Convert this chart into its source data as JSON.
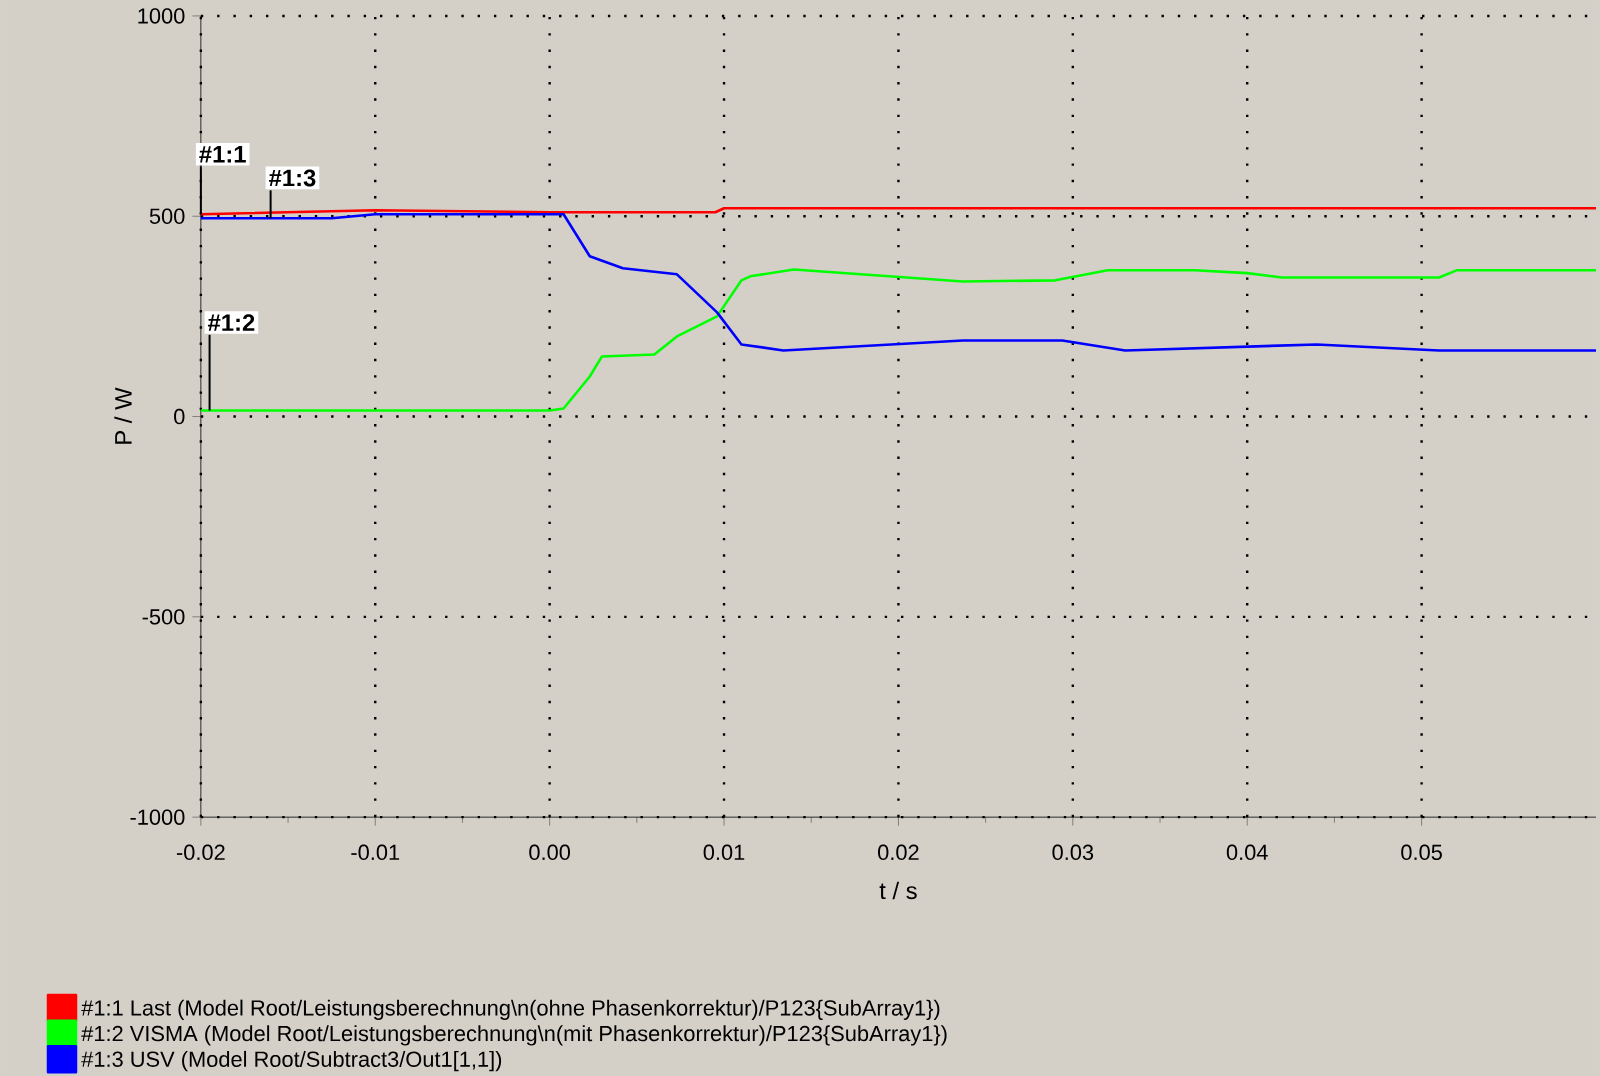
{
  "chart_data": {
    "type": "line",
    "xlabel": "t / s",
    "ylabel": "P / W",
    "xlim": [
      -0.02,
      0.06
    ],
    "ylim": [
      -1000,
      1000
    ],
    "xticks": [
      -0.02,
      -0.01,
      {
        "value": 0,
        "label": "0.00"
      },
      0.01,
      0.02,
      0.03,
      0.04,
      0.05
    ],
    "yticks": [
      -1000,
      -500,
      0,
      500,
      1000
    ],
    "grid": true,
    "legend": "bottom",
    "marker": "none",
    "line_style": "solid",
    "series": [
      {
        "name": "#1:1 Last (Model Root/Leistungsberechnung\\n(ohne Phasenkorrektur)/P123{SubArray1})",
        "color": "#ff0000",
        "x": [
          -0.02,
          -0.01,
          0.0,
          0.0095,
          0.01,
          0.06
        ],
        "values": [
          505,
          515,
          510,
          510,
          520,
          520
        ]
      },
      {
        "name": "#1:2 VISMA (Model Root/Leistungsberechnung\\n(mit Phasenkorrektur)/P123{SubArray1})",
        "color": "#00ff00",
        "x": [
          -0.02,
          -0.01,
          0.0,
          0.0008,
          0.0023,
          0.003,
          0.006,
          0.0073,
          0.0096,
          0.011,
          0.0115,
          0.014,
          0.0237,
          0.029,
          0.032,
          0.037,
          0.04,
          0.042,
          0.051,
          0.052,
          0.06
        ],
        "values": [
          15,
          15,
          15,
          20,
          100,
          150,
          155,
          200,
          250,
          340,
          350,
          367,
          337,
          340,
          365,
          365,
          358,
          347,
          347,
          365,
          365
        ]
      },
      {
        "name": "#1:3 USV (Model Root/Subtract3/Out1[1,1])",
        "color": "#0000ff",
        "x": [
          -0.02,
          -0.0125,
          -0.01,
          0.0,
          0.0008,
          0.0023,
          0.0042,
          0.0073,
          0.0096,
          0.011,
          0.0134,
          0.0237,
          0.0294,
          0.033,
          0.044,
          0.051,
          0.06
        ],
        "values": [
          495,
          495,
          505,
          505,
          505,
          400,
          370,
          355,
          260,
          180,
          165,
          190,
          190,
          165,
          180,
          165,
          165
        ]
      }
    ],
    "annotations": [
      {
        "text": "#1:1",
        "x": -0.02,
        "y": 505
      },
      {
        "text": "#1:3",
        "x": -0.016,
        "y": 495
      },
      {
        "text": "#1:2",
        "x": -0.0195,
        "y": 15
      }
    ]
  }
}
